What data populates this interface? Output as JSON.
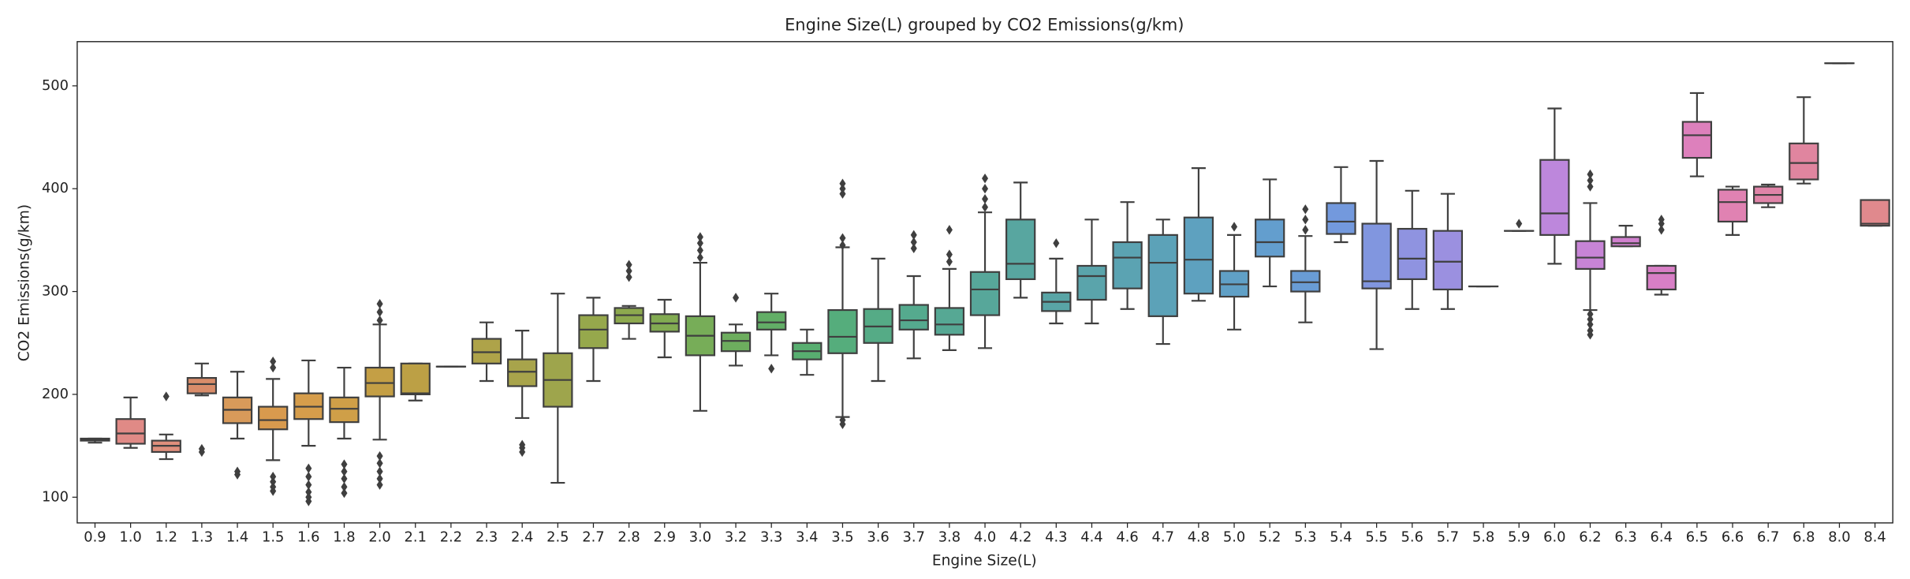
{
  "chart_data": {
    "type": "box",
    "title": "Engine Size(L) grouped by CO2 Emissions(g/km)",
    "x_label": "Engine Size(L)",
    "y_label": "CO2 Emissions(g/km)",
    "categories": [
      "0.9",
      "1.0",
      "1.2",
      "1.3",
      "1.4",
      "1.5",
      "1.6",
      "1.8",
      "2.0",
      "2.1",
      "2.2",
      "2.3",
      "2.4",
      "2.5",
      "2.7",
      "2.8",
      "2.9",
      "3.0",
      "3.2",
      "3.3",
      "3.4",
      "3.5",
      "3.6",
      "3.7",
      "3.8",
      "4.0",
      "4.2",
      "4.3",
      "4.4",
      "4.6",
      "4.7",
      "4.8",
      "5.0",
      "5.2",
      "5.3",
      "5.4",
      "5.5",
      "5.6",
      "5.7",
      "5.8",
      "5.9",
      "6.0",
      "6.2",
      "6.3",
      "6.4",
      "6.5",
      "6.6",
      "6.7",
      "6.8",
      "8.0",
      "8.4"
    ],
    "colors": [
      "#e1827f",
      "#e08a86",
      "#df8f7c",
      "#d98c6a",
      "#d89a5a",
      "#d89a4e",
      "#d69d4b",
      "#cf9f48",
      "#c49f45",
      "#bca045",
      "#b5a247",
      "#aea349",
      "#a8a44b",
      "#9ea54c",
      "#96a84c",
      "#8da94e",
      "#82ab52",
      "#77ad58",
      "#6dad5e",
      "#62ae66",
      "#58ae70",
      "#55ad7c",
      "#55ab86",
      "#55aa8e",
      "#56a894",
      "#57a79a",
      "#58a6a0",
      "#59a5a6",
      "#5aa4ab",
      "#5ba3b2",
      "#5ca2b8",
      "#5ea1bf",
      "#60a0c6",
      "#639ece",
      "#699cd5",
      "#7399dd",
      "#8196df",
      "#8f93e0",
      "#9b90e0",
      "#a78ddf",
      "#b28ade",
      "#bd87dc",
      "#c784d6",
      "#d180cf",
      "#d87fc6",
      "#dd80bc",
      "#e082b2",
      "#e084a8",
      "#e0859f",
      "#e08796",
      "#e0898d"
    ],
    "boxes": [
      {
        "whislo": 153,
        "q1": 155,
        "med": 156,
        "q3": 157,
        "whishi": 157,
        "fliers": []
      },
      {
        "whislo": 148,
        "q1": 152,
        "med": 162,
        "q3": 176,
        "whishi": 197,
        "fliers": []
      },
      {
        "whislo": 137,
        "q1": 144,
        "med": 150,
        "q3": 155,
        "whishi": 161,
        "fliers": [
          198
        ]
      },
      {
        "whislo": 199,
        "q1": 201,
        "med": 210,
        "q3": 216,
        "whishi": 230,
        "fliers": [
          144,
          147
        ]
      },
      {
        "whislo": 157,
        "q1": 172,
        "med": 185,
        "q3": 197,
        "whishi": 222,
        "fliers": [
          122,
          125
        ]
      },
      {
        "whislo": 136,
        "q1": 166,
        "med": 175,
        "q3": 188,
        "whishi": 215,
        "fliers": [
          106,
          110,
          115,
          120,
          226,
          232
        ]
      },
      {
        "whislo": 150,
        "q1": 176,
        "med": 188,
        "q3": 201,
        "whishi": 233,
        "fliers": [
          96,
          100,
          105,
          112,
          120,
          128
        ]
      },
      {
        "whislo": 157,
        "q1": 173,
        "med": 186,
        "q3": 197,
        "whishi": 226,
        "fliers": [
          104,
          110,
          118,
          125,
          132
        ]
      },
      {
        "whislo": 156,
        "q1": 198,
        "med": 211,
        "q3": 226,
        "whishi": 268,
        "fliers": [
          112,
          118,
          125,
          133,
          140,
          272,
          280,
          288
        ]
      },
      {
        "whislo": 194,
        "q1": 200,
        "med": 201,
        "q3": 230,
        "whishi": 230,
        "fliers": []
      },
      {
        "whislo": 227,
        "q1": 227,
        "med": 227,
        "q3": 227,
        "whishi": 227,
        "fliers": []
      },
      {
        "whislo": 213,
        "q1": 230,
        "med": 241,
        "q3": 254,
        "whishi": 270,
        "fliers": []
      },
      {
        "whislo": 177,
        "q1": 208,
        "med": 222,
        "q3": 234,
        "whishi": 262,
        "fliers": [
          144,
          148,
          151
        ]
      },
      {
        "whislo": 114,
        "q1": 188,
        "med": 214,
        "q3": 240,
        "whishi": 298,
        "fliers": []
      },
      {
        "whislo": 213,
        "q1": 245,
        "med": 263,
        "q3": 277,
        "whishi": 294,
        "fliers": []
      },
      {
        "whislo": 254,
        "q1": 269,
        "med": 277,
        "q3": 284,
        "whishi": 286,
        "fliers": [
          314,
          320,
          326
        ]
      },
      {
        "whislo": 236,
        "q1": 261,
        "med": 269,
        "q3": 278,
        "whishi": 292,
        "fliers": []
      },
      {
        "whislo": 184,
        "q1": 238,
        "med": 257,
        "q3": 276,
        "whishi": 328,
        "fliers": [
          333,
          340,
          347,
          353
        ]
      },
      {
        "whislo": 228,
        "q1": 242,
        "med": 252,
        "q3": 260,
        "whishi": 268,
        "fliers": [
          294
        ]
      },
      {
        "whislo": 238,
        "q1": 263,
        "med": 270,
        "q3": 280,
        "whishi": 298,
        "fliers": [
          225
        ]
      },
      {
        "whislo": 219,
        "q1": 234,
        "med": 242,
        "q3": 250,
        "whishi": 263,
        "fliers": []
      },
      {
        "whislo": 178,
        "q1": 240,
        "med": 256,
        "q3": 282,
        "whishi": 343,
        "fliers": [
          171,
          175,
          345,
          352,
          395,
          400,
          405
        ]
      },
      {
        "whislo": 213,
        "q1": 250,
        "med": 266,
        "q3": 283,
        "whishi": 332,
        "fliers": []
      },
      {
        "whislo": 235,
        "q1": 263,
        "med": 272,
        "q3": 287,
        "whishi": 315,
        "fliers": [
          342,
          348,
          355
        ]
      },
      {
        "whislo": 243,
        "q1": 258,
        "med": 268,
        "q3": 284,
        "whishi": 322,
        "fliers": [
          329,
          336,
          360
        ]
      },
      {
        "whislo": 245,
        "q1": 277,
        "med": 302,
        "q3": 319,
        "whishi": 377,
        "fliers": [
          382,
          390,
          400,
          410
        ]
      },
      {
        "whislo": 294,
        "q1": 312,
        "med": 327,
        "q3": 370,
        "whishi": 406,
        "fliers": []
      },
      {
        "whislo": 269,
        "q1": 281,
        "med": 290,
        "q3": 299,
        "whishi": 332,
        "fliers": [
          347
        ]
      },
      {
        "whislo": 269,
        "q1": 292,
        "med": 315,
        "q3": 325,
        "whishi": 370,
        "fliers": []
      },
      {
        "whislo": 283,
        "q1": 303,
        "med": 333,
        "q3": 348,
        "whishi": 387,
        "fliers": []
      },
      {
        "whislo": 249,
        "q1": 276,
        "med": 328,
        "q3": 355,
        "whishi": 370,
        "fliers": []
      },
      {
        "whislo": 291,
        "q1": 298,
        "med": 331,
        "q3": 372,
        "whishi": 420,
        "fliers": []
      },
      {
        "whislo": 263,
        "q1": 295,
        "med": 307,
        "q3": 320,
        "whishi": 355,
        "fliers": [
          363
        ]
      },
      {
        "whislo": 305,
        "q1": 334,
        "med": 348,
        "q3": 370,
        "whishi": 409,
        "fliers": []
      },
      {
        "whislo": 270,
        "q1": 300,
        "med": 309,
        "q3": 320,
        "whishi": 354,
        "fliers": [
          360,
          370,
          380
        ]
      },
      {
        "whislo": 348,
        "q1": 356,
        "med": 368,
        "q3": 386,
        "whishi": 421,
        "fliers": []
      },
      {
        "whislo": 244,
        "q1": 303,
        "med": 310,
        "q3": 366,
        "whishi": 427,
        "fliers": []
      },
      {
        "whislo": 283,
        "q1": 312,
        "med": 332,
        "q3": 361,
        "whishi": 398,
        "fliers": []
      },
      {
        "whislo": 283,
        "q1": 302,
        "med": 329,
        "q3": 359,
        "whishi": 395,
        "fliers": []
      },
      {
        "whislo": 305,
        "q1": 305,
        "med": 305,
        "q3": 305,
        "whishi": 305,
        "fliers": []
      },
      {
        "whislo": 359,
        "q1": 359,
        "med": 359,
        "q3": 359,
        "whishi": 359,
        "fliers": [
          366
        ]
      },
      {
        "whislo": 327,
        "q1": 355,
        "med": 376,
        "q3": 428,
        "whishi": 478,
        "fliers": []
      },
      {
        "whislo": 282,
        "q1": 322,
        "med": 333,
        "q3": 349,
        "whishi": 386,
        "fliers": [
          258,
          262,
          268,
          273,
          278,
          402,
          408,
          414
        ]
      },
      {
        "whislo": 344,
        "q1": 344,
        "med": 347,
        "q3": 353,
        "whishi": 364,
        "fliers": []
      },
      {
        "whislo": 297,
        "q1": 302,
        "med": 318,
        "q3": 325,
        "whishi": 325,
        "fliers": [
          360,
          366,
          370
        ]
      },
      {
        "whislo": 412,
        "q1": 430,
        "med": 452,
        "q3": 465,
        "whishi": 493,
        "fliers": []
      },
      {
        "whislo": 355,
        "q1": 368,
        "med": 387,
        "q3": 399,
        "whishi": 402,
        "fliers": []
      },
      {
        "whislo": 382,
        "q1": 386,
        "med": 394,
        "q3": 402,
        "whishi": 404,
        "fliers": []
      },
      {
        "whislo": 405,
        "q1": 409,
        "med": 425,
        "q3": 444,
        "whishi": 489,
        "fliers": []
      },
      {
        "whislo": 522,
        "q1": 522,
        "med": 522,
        "q3": 522,
        "whishi": 522,
        "fliers": []
      },
      {
        "whislo": 364,
        "q1": 364,
        "med": 366,
        "q3": 389,
        "whishi": 389,
        "fliers": []
      }
    ],
    "line_color": "#3f3f3f",
    "ylim": [
      75,
      543
    ],
    "yticks": [
      100,
      200,
      300,
      400,
      500
    ],
    "grid": false
  }
}
